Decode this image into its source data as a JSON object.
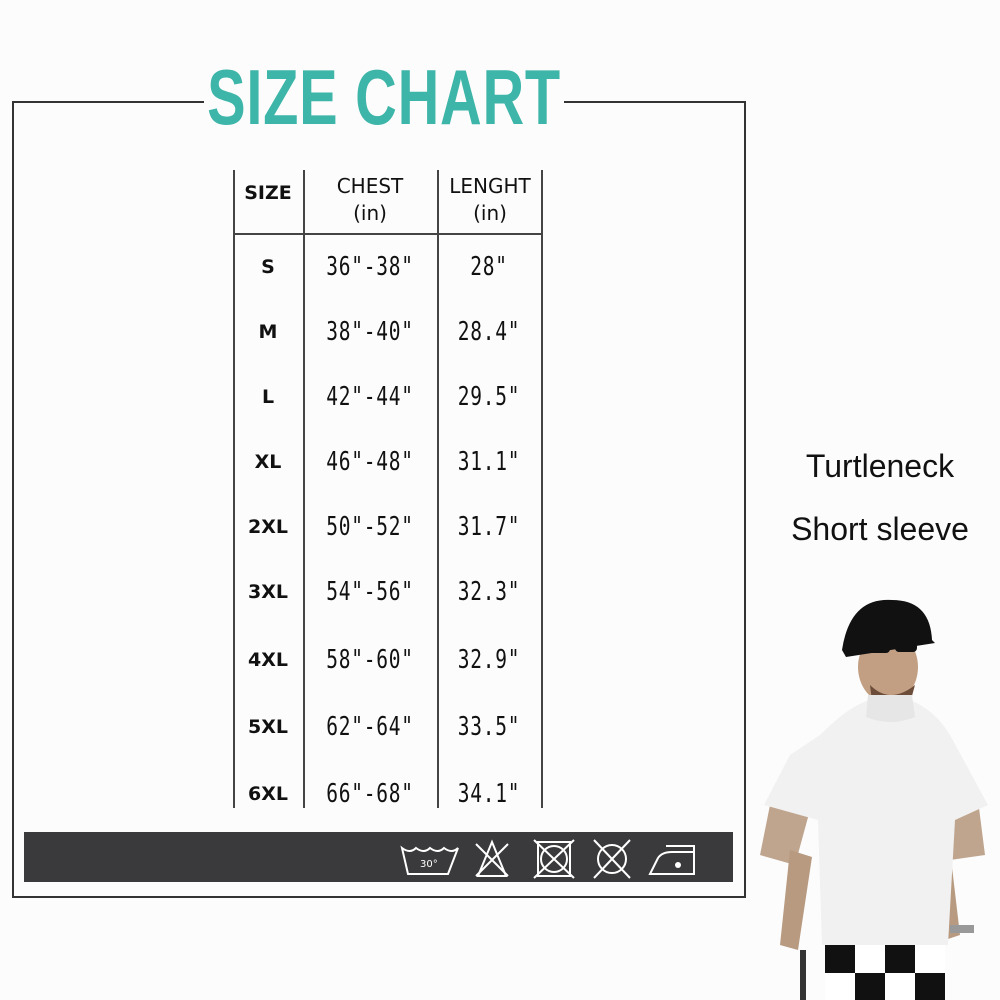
{
  "title": "SIZE CHART",
  "accent_color": "#3db5a8",
  "table": {
    "headers": [
      {
        "label": "SIZE",
        "unit": ""
      },
      {
        "label": "CHEST",
        "unit": "(in)"
      },
      {
        "label": "LENGHT",
        "unit": "(in)"
      }
    ],
    "rows": [
      {
        "size": "S",
        "chest": "36\"-38\"",
        "length": "28\""
      },
      {
        "size": "M",
        "chest": "38\"-40\"",
        "length": "28.4\""
      },
      {
        "size": "L",
        "chest": "42\"-44\"",
        "length": "29.5\""
      },
      {
        "size": "XL",
        "chest": "46\"-48\"",
        "length": "31.1\""
      },
      {
        "size": "2XL",
        "chest": "50\"-52\"",
        "length": "31.7\""
      },
      {
        "size": "3XL",
        "chest": "54\"-56\"",
        "length": "32.3\""
      },
      {
        "size": "4XL",
        "chest": "58\"-60\"",
        "length": "32.9\""
      },
      {
        "size": "5XL",
        "chest": "62\"-64\"",
        "length": "33.5\""
      },
      {
        "size": "6XL",
        "chest": "66\"-68\"",
        "length": "34.1\""
      }
    ]
  },
  "care_icons": [
    {
      "name": "wash-30-icon",
      "label": "30°"
    },
    {
      "name": "do-not-bleach-icon"
    },
    {
      "name": "do-not-tumble-dry-icon"
    },
    {
      "name": "do-not-dry-clean-icon"
    },
    {
      "name": "iron-low-icon"
    }
  ],
  "product": {
    "line1": "Turtleneck",
    "line2": "Short sleeve"
  }
}
